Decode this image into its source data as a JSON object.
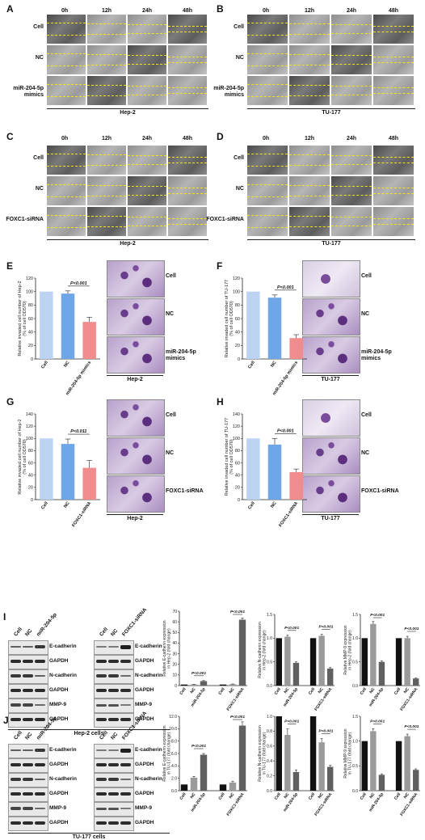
{
  "panels": {
    "A": {
      "letter": "A",
      "times": [
        "0h",
        "12h",
        "24h",
        "48h"
      ],
      "rows": [
        "Cell",
        "NC",
        "miR-204-5p\nmimics"
      ],
      "caption": "Hep-2"
    },
    "B": {
      "letter": "B",
      "times": [
        "0h",
        "12h",
        "24h",
        "48h"
      ],
      "rows": [
        "Cell",
        "NC",
        "miR-204-5p\nmimics"
      ],
      "caption": "TU-177"
    },
    "C": {
      "letter": "C",
      "times": [
        "0h",
        "12h",
        "24h",
        "48h"
      ],
      "rows": [
        "Cell",
        "NC",
        "FOXC1-siRNA"
      ],
      "caption": "Hep-2"
    },
    "D": {
      "letter": "D",
      "times": [
        "0h",
        "12h",
        "24h",
        "48h"
      ],
      "rows": [
        "Cell",
        "NC",
        "FOXC1-siRNA"
      ],
      "caption": "TU-177"
    },
    "E": {
      "letter": "E",
      "ylabel": "Relative invaded cell number of Hep-2\n(% of cell OD570)",
      "images": [
        "Cell",
        "NC",
        "miR-204-5p\nmimics"
      ],
      "caption": "Hep-2",
      "pval": "P<0.001"
    },
    "F": {
      "letter": "F",
      "ylabel": "Relative invaded cell number of TU-177\n(% of cell OD570)",
      "images": [
        "Cell",
        "NC",
        "miR-204-5p\nmimics"
      ],
      "caption": "TU-177",
      "pval": "P<0.001"
    },
    "G": {
      "letter": "G",
      "ylabel": "Relative invaded cell number of Hep-2\n(% of cell OD570)",
      "images": [
        "Cell",
        "NC",
        "FOXC1-siRNA"
      ],
      "caption": "Hep-2",
      "pval": "P<0.011"
    },
    "H": {
      "letter": "H",
      "ylabel": "Relative invaded cell number of TU-177\n(% of cell OD570)",
      "images": [
        "Cell",
        "NC",
        "FOXC1-siRNA"
      ],
      "caption": "TU-177",
      "pval": "P<0.001"
    },
    "I": {
      "letter": "I",
      "caption": "Hep-2 cells",
      "lanes_left": [
        "Cell",
        "NC",
        "miR-204-5p"
      ],
      "lanes_right": [
        "Cell",
        "NC",
        "FOXC1-siRNA"
      ],
      "bands_left": [
        "E-cadherin",
        "GAPDH",
        "N-cadherin",
        "GAPDH",
        "MMP-9",
        "GAPDH"
      ],
      "bands_right": [
        "E-cadherin",
        "GAPDH",
        "N-cadherin",
        "GAPDH",
        "MMP-9",
        "GAPDH"
      ]
    },
    "J": {
      "letter": "J",
      "caption": "TU-177 cells",
      "lanes_left": [
        "Cell",
        "NC",
        "miR-204-5p"
      ],
      "lanes_right": [
        "Cell",
        "NC",
        "FOXC1-siRNA"
      ],
      "bands_left": [
        "E-cadherin",
        "GAPDH",
        "N-cadherin",
        "GAPDH",
        "MMP-9",
        "GAPDH"
      ],
      "bands_right": [
        "E-cadherin",
        "GAPDH",
        "N-cadherin",
        "GAPDH",
        "MMP-9",
        "GAPDH"
      ]
    }
  },
  "chart_data": [
    {
      "id": "E",
      "type": "bar",
      "categories": [
        "Cell",
        "NC",
        "miR-204-5p mimics"
      ],
      "values": [
        100,
        97,
        55
      ],
      "errors": [
        0,
        4,
        7
      ],
      "colors": [
        "#bcd4f2",
        "#6fa6e8",
        "#f08c8c"
      ],
      "ylim": [
        0,
        120
      ],
      "yticks": [
        "0",
        "20",
        "40",
        "60",
        "80",
        "100",
        "120"
      ],
      "ylabel": "Relative invaded cell number of Hep-2\n(% of cell OD570)",
      "annotation": "P<0.001"
    },
    {
      "id": "F",
      "type": "bar",
      "categories": [
        "Cell",
        "NC",
        "miR-204-5p mimics"
      ],
      "values": [
        100,
        91,
        31
      ],
      "errors": [
        0,
        4,
        5
      ],
      "colors": [
        "#bcd4f2",
        "#6fa6e8",
        "#f08c8c"
      ],
      "ylim": [
        0,
        120
      ],
      "yticks": [
        "0",
        "20",
        "40",
        "60",
        "80",
        "100",
        "120"
      ],
      "ylabel": "Relative invaded cell number of TU-177\n(% of cell OD570)",
      "annotation": "P<0.001"
    },
    {
      "id": "G",
      "type": "bar",
      "categories": [
        "Cell",
        "NC",
        "FOXC1-siRNA"
      ],
      "values": [
        100,
        91,
        52
      ],
      "errors": [
        0,
        8,
        12
      ],
      "colors": [
        "#bcd4f2",
        "#6fa6e8",
        "#f08c8c"
      ],
      "ylim": [
        0,
        140
      ],
      "yticks": [
        "0",
        "20",
        "40",
        "60",
        "80",
        "100",
        "120",
        "140"
      ],
      "ylabel": "Relative invaded cell number of Hep-2\n(% of cell OD570)",
      "annotation": "P<0.011"
    },
    {
      "id": "H",
      "type": "bar",
      "categories": [
        "Cell",
        "NC",
        "FOXC1-siRNA"
      ],
      "values": [
        100,
        90,
        45
      ],
      "errors": [
        0,
        10,
        5
      ],
      "colors": [
        "#bcd4f2",
        "#6fa6e8",
        "#f08c8c"
      ],
      "ylim": [
        0,
        140
      ],
      "yticks": [
        "0",
        "20",
        "40",
        "60",
        "80",
        "100",
        "120",
        "140"
      ],
      "ylabel": "Relative invaded cell number of TU-177\n(% of cell OD570)",
      "annotation": "P<0.001"
    },
    {
      "id": "I1",
      "type": "bar",
      "categories": [
        "Cell",
        "NC",
        "miR-204-5p",
        "Cell",
        "NC",
        "FOXC1-siRNA"
      ],
      "values": [
        1,
        1.1,
        4.2,
        1,
        1.3,
        62
      ],
      "errors": [
        0,
        0.2,
        0.5,
        0,
        0.2,
        1.5
      ],
      "colors": [
        "#111",
        "#9a9a9a",
        "#606060",
        "#111",
        "#9a9a9a",
        "#606060"
      ],
      "ylim": [
        0,
        70
      ],
      "yticks": [
        "0",
        "10",
        "20",
        "30",
        "40",
        "50",
        "60",
        "70"
      ],
      "ylabel": "Relative E-cadherin expression\nin Hep-2 (fold change)",
      "annotations": [
        "P<0.001",
        "P<0.001"
      ]
    },
    {
      "id": "I2",
      "type": "bar",
      "categories": [
        "Cell",
        "NC",
        "miR-204-5p",
        "Cell",
        "NC",
        "FOXC1-siRNA"
      ],
      "values": [
        1,
        1.03,
        0.48,
        1,
        1.05,
        0.36
      ],
      "errors": [
        0,
        0.03,
        0.02,
        0,
        0.03,
        0.02
      ],
      "colors": [
        "#111",
        "#9a9a9a",
        "#606060",
        "#111",
        "#9a9a9a",
        "#606060"
      ],
      "ylim": [
        0,
        1.5
      ],
      "yticks": [
        "0.0",
        "0.5",
        "1.0",
        "1.5"
      ],
      "ylabel": "Relative N-cadherin expression\nin Hep-2 (fold change)",
      "annotations": [
        "P<0.001",
        "P<0.001"
      ]
    },
    {
      "id": "I3",
      "type": "bar",
      "categories": [
        "Cell",
        "NC",
        "miR-204-5p",
        "Cell",
        "NC",
        "FOXC1-siRNA"
      ],
      "values": [
        1,
        1.3,
        0.5,
        1,
        1.0,
        0.15
      ],
      "errors": [
        0,
        0.05,
        0.02,
        0,
        0.04,
        0.01
      ],
      "colors": [
        "#111",
        "#9a9a9a",
        "#606060",
        "#111",
        "#9a9a9a",
        "#606060"
      ],
      "ylim": [
        0,
        1.5
      ],
      "yticks": [
        "0.0",
        "0.5",
        "1.0",
        "1.5"
      ],
      "ylabel": "Relative MMP-9 expression\nin Hep-2 (fold change)",
      "annotations": [
        "P<0.001",
        "P<0.001"
      ]
    },
    {
      "id": "J1",
      "type": "bar",
      "categories": [
        "Cell",
        "NC",
        "miR-204-5p",
        "Cell",
        "NC",
        "FOXC1-siRNA"
      ],
      "values": [
        1,
        2.1,
        5.8,
        1,
        1.3,
        10.5
      ],
      "errors": [
        0,
        0.2,
        0.2,
        0,
        0.2,
        0.6
      ],
      "colors": [
        "#111",
        "#9a9a9a",
        "#606060",
        "#111",
        "#9a9a9a",
        "#606060"
      ],
      "ylim": [
        0,
        12
      ],
      "yticks": [
        "0.0",
        "2.0",
        "4.0",
        "6.0",
        "8.0",
        "10.0",
        "12.0"
      ],
      "ylabel": "Relative E-cadherin expression\nin TU-177 (fold change)",
      "annotations": [
        "P<0.001",
        "P<0.001"
      ]
    },
    {
      "id": "J2",
      "type": "bar",
      "categories": [
        "Cell",
        "NC",
        "miR-204-5p",
        "Cell",
        "NC",
        "FOXC1-siRNA"
      ],
      "values": [
        1,
        0.75,
        0.25,
        1,
        0.65,
        0.32
      ],
      "errors": [
        0,
        0.08,
        0.03,
        0,
        0.05,
        0.02
      ],
      "colors": [
        "#111",
        "#9a9a9a",
        "#606060",
        "#111",
        "#9a9a9a",
        "#606060"
      ],
      "ylim": [
        0,
        1.0
      ],
      "yticks": [
        "0.0",
        "0.2",
        "0.4",
        "0.6",
        "0.8",
        "1.0"
      ],
      "ylabel": "Relative N-cadherin expression\nin TU-177 (fold change)",
      "annotations": [
        "P<0.001",
        "P<0.001"
      ]
    },
    {
      "id": "J3",
      "type": "bar",
      "categories": [
        "Cell",
        "NC",
        "miR-204-5p",
        "Cell",
        "NC",
        "FOXC1-siRNA"
      ],
      "values": [
        1,
        1.2,
        0.32,
        1,
        1.1,
        0.42
      ],
      "errors": [
        0,
        0.05,
        0.02,
        0,
        0.04,
        0.02
      ],
      "colors": [
        "#111",
        "#9a9a9a",
        "#606060",
        "#111",
        "#9a9a9a",
        "#606060"
      ],
      "ylim": [
        0,
        1.5
      ],
      "yticks": [
        "0.0",
        "0.5",
        "1.0",
        "1.5"
      ],
      "ylabel": "Relative MMP-9 expression\nin TU-177 (fold change)",
      "annotations": [
        "P<0.001",
        "P<0.001"
      ]
    }
  ]
}
